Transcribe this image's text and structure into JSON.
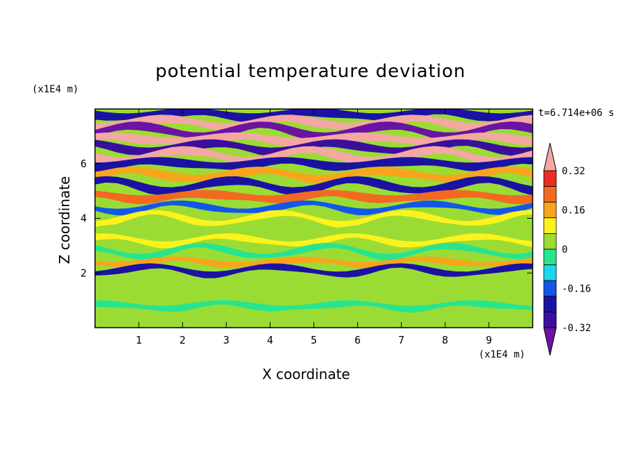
{
  "chart_data": {
    "type": "heatmap",
    "title": "potential temperature deviation",
    "xlabel": "X coordinate",
    "ylabel": "Z coordinate",
    "x_unit": "(x1E4 m)",
    "y_unit": "(x1E4 m)",
    "time_label": "t=6.714e+06 s",
    "xlim": [
      0,
      10
    ],
    "ylim": [
      0,
      8
    ],
    "x_ticks": [
      1,
      2,
      3,
      4,
      5,
      6,
      7,
      8,
      9
    ],
    "y_ticks": [
      2,
      4,
      6
    ],
    "colorbar": {
      "levels": [
        -0.4,
        -0.32,
        -0.24,
        -0.16,
        -0.08,
        0,
        0.08,
        0.16,
        0.24,
        0.32,
        0.4
      ],
      "tick_labels": [
        "0.32",
        "0.16",
        "0",
        "-0.16",
        "-0.32"
      ],
      "tick_values": [
        0.32,
        0.16,
        0,
        -0.16,
        -0.32
      ],
      "colors_top_to_bottom": [
        "#f4a7a3",
        "#ee2a24",
        "#f26a22",
        "#f7a51c",
        "#fbf31d",
        "#9bdc34",
        "#27e58f",
        "#1ad7ec",
        "#1357e8",
        "#1b12a4",
        "#3b0f9e",
        "#6a14a4"
      ]
    },
    "bands": [
      {
        "z": 7.8,
        "value": -0.3
      },
      {
        "z": 7.5,
        "value": 0.45
      },
      {
        "z": 7.2,
        "value": -0.45
      },
      {
        "z": 6.9,
        "value": 0.45
      },
      {
        "z": 6.6,
        "value": -0.35
      },
      {
        "z": 6.3,
        "value": 0.45
      },
      {
        "z": 6.0,
        "value": -0.25
      },
      {
        "z": 5.6,
        "value": 0.2
      },
      {
        "z": 5.2,
        "value": -0.3
      },
      {
        "z": 4.8,
        "value": 0.3
      },
      {
        "z": 4.4,
        "value": -0.2
      },
      {
        "z": 4.0,
        "value": 0.08
      },
      {
        "z": 3.6,
        "value": 0.04
      },
      {
        "z": 3.2,
        "value": 0.12
      },
      {
        "z": 2.8,
        "value": -0.05
      },
      {
        "z": 2.4,
        "value": 0.16
      },
      {
        "z": 2.1,
        "value": -0.3
      },
      {
        "z": 1.6,
        "value": 0.03
      },
      {
        "z": 0.8,
        "value": -0.03
      }
    ]
  }
}
